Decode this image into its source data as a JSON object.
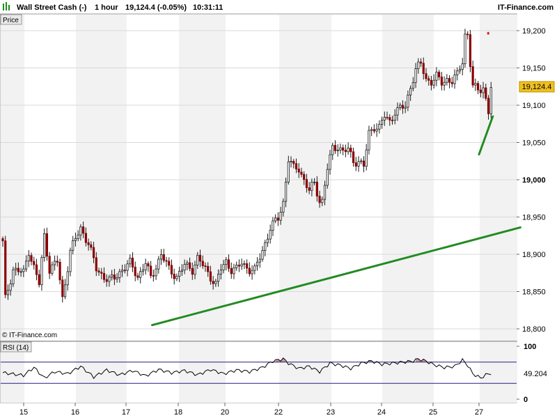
{
  "header": {
    "instrument": "Wall Street Cash (-)",
    "timeframe": "1 hour",
    "quote": "19,124.4 (-0.05%)",
    "time": "10:31:11",
    "brand": "IT-Finance.com"
  },
  "panels": {
    "price_label": "Price",
    "rsi_label": "RSI (14)",
    "copyright": "© IT-Finance.com"
  },
  "colors": {
    "up": "#1a1a1a",
    "down": "#8b0000",
    "trendline": "#228b22",
    "resistance": "#e31c1c",
    "price_badge": "#f0c020",
    "rsi_band": "#2b1a8c",
    "rsi_fill": "#c89aa0"
  },
  "chart_data": [
    {
      "type": "candlestick",
      "title": "Wall Street Cash (-)",
      "ylim": [
        18780,
        19225
      ],
      "yticks": [
        "18,800",
        "18,850",
        "18,900",
        "18,950",
        "19,000",
        "19,050",
        "19,100",
        "19,150",
        "19,200"
      ],
      "y_bold_tick": "19,000",
      "xticks": [
        "15",
        "16",
        "17",
        "18",
        "20",
        "22",
        "23",
        "24",
        "25",
        "27"
      ],
      "last_price": "19,124.4",
      "grid": true,
      "anchors": [
        [
          0,
          18915
        ],
        [
          1,
          18840
        ],
        [
          4,
          18880
        ],
        [
          8,
          18875
        ],
        [
          10,
          18905
        ],
        [
          14,
          18860
        ],
        [
          16,
          18925
        ],
        [
          18,
          18880
        ],
        [
          21,
          18890
        ],
        [
          23,
          18840
        ],
        [
          26,
          18905
        ],
        [
          30,
          18935
        ],
        [
          33,
          18915
        ],
        [
          36,
          18880
        ],
        [
          39,
          18870
        ],
        [
          41,
          18865
        ],
        [
          43,
          18868
        ],
        [
          46,
          18880
        ],
        [
          49,
          18888
        ],
        [
          52,
          18870
        ],
        [
          55,
          18888
        ],
        [
          57,
          18868
        ],
        [
          61,
          18900
        ],
        [
          64,
          18880
        ],
        [
          67,
          18870
        ],
        [
          70,
          18885
        ],
        [
          73,
          18880
        ],
        [
          75,
          18895
        ],
        [
          78,
          18880
        ],
        [
          80,
          18870
        ],
        [
          82,
          18860
        ],
        [
          84,
          18880
        ],
        [
          86,
          18890
        ],
        [
          88,
          18880
        ],
        [
          90,
          18880
        ],
        [
          92,
          18888
        ],
        [
          95,
          18880
        ],
        [
          97,
          18878
        ],
        [
          100,
          18905
        ],
        [
          103,
          18935
        ],
        [
          106,
          18948
        ],
        [
          108,
          18970
        ],
        [
          110,
          19028
        ],
        [
          112,
          19015
        ],
        [
          114,
          19015
        ],
        [
          116,
          19000
        ],
        [
          118,
          18985
        ],
        [
          120,
          18995
        ],
        [
          122,
          18972
        ],
        [
          123,
          18972
        ],
        [
          125,
          19015
        ],
        [
          127,
          19042
        ],
        [
          129,
          19045
        ],
        [
          131,
          19038
        ],
        [
          133,
          19040
        ],
        [
          135,
          19025
        ],
        [
          137,
          19025
        ],
        [
          139,
          19018
        ],
        [
          141,
          19062
        ],
        [
          143,
          19072
        ],
        [
          145,
          19070
        ],
        [
          147,
          19085
        ],
        [
          149,
          19078
        ],
        [
          151,
          19092
        ],
        [
          153,
          19095
        ],
        [
          155,
          19098
        ],
        [
          157,
          19125
        ],
        [
          159,
          19148
        ],
        [
          161,
          19155
        ],
        [
          163,
          19135
        ],
        [
          165,
          19132
        ],
        [
          167,
          19138
        ],
        [
          169,
          19130
        ],
        [
          171,
          19135
        ],
        [
          173,
          19132
        ],
        [
          175,
          19140
        ],
        [
          177,
          19160
        ],
        [
          178,
          19195
        ],
        [
          179,
          19195
        ],
        [
          180,
          19155
        ],
        [
          181,
          19125
        ],
        [
          183,
          19120
        ],
        [
          185,
          19125
        ],
        [
          187,
          19090
        ],
        [
          188,
          19124
        ]
      ],
      "trendlines": [
        {
          "x0": 2.5,
          "y0": 18805,
          "x1": 24.9,
          "y1": 18936,
          "color": "#228b22"
        },
        {
          "x0": 22.0,
          "y0": 19034,
          "x1": 28.3,
          "y1": 19085,
          "color": "#228b22"
        },
        {
          "x0": 26.2,
          "y0": 19196,
          "x1": 28.2,
          "y1": 19197,
          "color": "#e31c1c"
        }
      ]
    },
    {
      "type": "line",
      "title": "RSI (14)",
      "ylim": [
        0,
        100
      ],
      "yticks": [
        "100",
        "0"
      ],
      "overbought": 70,
      "oversold": 30,
      "last_value": "49.204",
      "anchors": [
        [
          0,
          50
        ],
        [
          8,
          45
        ],
        [
          12,
          60
        ],
        [
          16,
          40
        ],
        [
          20,
          52
        ],
        [
          25,
          48
        ],
        [
          30,
          62
        ],
        [
          35,
          42
        ],
        [
          40,
          55
        ],
        [
          45,
          46
        ],
        [
          50,
          54
        ],
        [
          55,
          44
        ],
        [
          60,
          56
        ],
        [
          65,
          50
        ],
        [
          70,
          54
        ],
        [
          75,
          46
        ],
        [
          80,
          56
        ],
        [
          85,
          48
        ],
        [
          90,
          55
        ],
        [
          95,
          52
        ],
        [
          100,
          60
        ],
        [
          104,
          72
        ],
        [
          108,
          76
        ],
        [
          110,
          68
        ],
        [
          114,
          58
        ],
        [
          118,
          62
        ],
        [
          122,
          52
        ],
        [
          126,
          68
        ],
        [
          130,
          64
        ],
        [
          134,
          58
        ],
        [
          138,
          68
        ],
        [
          142,
          72
        ],
        [
          146,
          66
        ],
        [
          150,
          68
        ],
        [
          154,
          70
        ],
        [
          158,
          72
        ],
        [
          160,
          76
        ],
        [
          163,
          72
        ],
        [
          166,
          65
        ],
        [
          170,
          60
        ],
        [
          174,
          62
        ],
        [
          177,
          74
        ],
        [
          179,
          64
        ],
        [
          181,
          48
        ],
        [
          184,
          40
        ],
        [
          186,
          46
        ],
        [
          188,
          49
        ]
      ]
    }
  ]
}
